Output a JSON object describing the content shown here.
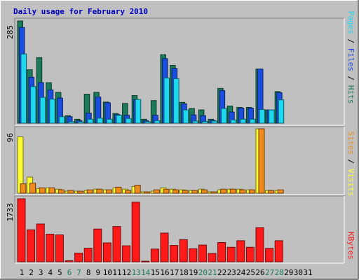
{
  "title": "Daily usage for February 2010",
  "colors": {
    "background": "#c0c0c0",
    "frame_light": "#ffffff",
    "frame_dark": "#808080",
    "title": "#0000c0",
    "hits": "#1a7a5a",
    "files": "#1a4ee0",
    "pages": "#1ed8f0",
    "sites": "#ffff30",
    "visits": "#f08a1a",
    "kbytes": "#ff1a1a",
    "weekday_label": "#000000",
    "weekend_label": "#1a7a5a"
  },
  "chart_data": [
    {
      "type": "bar",
      "panel": "hits-files-pages",
      "max_label": "285",
      "ylim": [
        0,
        285
      ],
      "legend": [
        "Pages",
        "Files",
        "Hits"
      ],
      "categories": [
        "1",
        "2",
        "3",
        "4",
        "5",
        "6",
        "7",
        "8",
        "9",
        "10",
        "11",
        "12",
        "13",
        "14",
        "15",
        "16",
        "17",
        "18",
        "19",
        "20",
        "21",
        "22",
        "23",
        "24",
        "25",
        "26",
        "27",
        "28",
        "29",
        "30",
        "31"
      ],
      "series": [
        {
          "name": "Hits",
          "values": [
            285,
            149,
            183,
            113,
            86,
            21,
            11,
            81,
            86,
            59,
            27,
            55,
            77,
            11,
            63,
            191,
            161,
            58,
            41,
            37,
            11,
            97,
            48,
            44,
            44,
            151,
            37,
            88,
            0,
            0,
            0
          ]
        },
        {
          "name": "Files",
          "values": [
            267,
            128,
            113,
            93,
            70,
            18,
            7,
            28,
            73,
            57,
            24,
            22,
            66,
            7,
            22,
            180,
            153,
            54,
            23,
            21,
            8,
            91,
            31,
            42,
            42,
            151,
            37,
            85,
            0,
            0,
            0
          ]
        },
        {
          "name": "Pages",
          "values": [
            193,
            102,
            72,
            67,
            18,
            4,
            4,
            11,
            14,
            11,
            22,
            13,
            66,
            4,
            7,
            126,
            124,
            37,
            6,
            5,
            6,
            41,
            9,
            11,
            11,
            38,
            37,
            65,
            0,
            0,
            0
          ]
        }
      ]
    },
    {
      "type": "bar",
      "panel": "sites-visits",
      "max_label": "96",
      "ylim": [
        0,
        96
      ],
      "legend": [
        "Sites",
        "Visits"
      ],
      "categories": [
        "1",
        "2",
        "3",
        "4",
        "5",
        "6",
        "7",
        "8",
        "9",
        "10",
        "11",
        "12",
        "13",
        "14",
        "15",
        "16",
        "17",
        "18",
        "19",
        "20",
        "21",
        "22",
        "23",
        "24",
        "25",
        "26",
        "27",
        "28",
        "29",
        "30",
        "31"
      ],
      "series": [
        {
          "name": "Sites",
          "values": [
            84,
            24,
            7,
            8,
            6,
            3,
            3,
            4,
            6,
            5,
            8,
            6,
            10,
            2,
            3,
            8,
            6,
            5,
            4,
            6,
            2,
            5,
            6,
            6,
            5,
            96,
            4,
            4,
            0,
            0,
            0
          ]
        },
        {
          "name": "Visits",
          "values": [
            14,
            15,
            8,
            8,
            5,
            4,
            3,
            5,
            6,
            5,
            9,
            4,
            12,
            2,
            5,
            6,
            5,
            4,
            4,
            5,
            2,
            6,
            6,
            5,
            5,
            96,
            4,
            5,
            0,
            0,
            0
          ]
        }
      ]
    },
    {
      "type": "bar",
      "panel": "kbytes",
      "max_label": "1733",
      "ylim": [
        0,
        1733
      ],
      "legend": [
        "KBytes"
      ],
      "categories": [
        "1",
        "2",
        "3",
        "4",
        "5",
        "6",
        "7",
        "8",
        "9",
        "10",
        "11",
        "12",
        "13",
        "14",
        "15",
        "16",
        "17",
        "18",
        "19",
        "20",
        "21",
        "22",
        "23",
        "24",
        "25",
        "26",
        "27",
        "28",
        "29",
        "30",
        "31"
      ],
      "series": [
        {
          "name": "KBytes",
          "values": [
            1733,
            880,
            1040,
            760,
            740,
            31,
            240,
            374,
            900,
            520,
            970,
            440,
            1640,
            16,
            350,
            790,
            450,
            610,
            360,
            460,
            230,
            530,
            400,
            580,
            400,
            940,
            370,
            580,
            0,
            0,
            0
          ]
        }
      ]
    }
  ],
  "x_labels": [
    {
      "label": "1",
      "weekend": false
    },
    {
      "label": "2",
      "weekend": false
    },
    {
      "label": "3",
      "weekend": false
    },
    {
      "label": "4",
      "weekend": false
    },
    {
      "label": "5",
      "weekend": false
    },
    {
      "label": "6",
      "weekend": true
    },
    {
      "label": "7",
      "weekend": true
    },
    {
      "label": "8",
      "weekend": false
    },
    {
      "label": "9",
      "weekend": false
    },
    {
      "label": "10",
      "weekend": false
    },
    {
      "label": "11",
      "weekend": false
    },
    {
      "label": "12",
      "weekend": false
    },
    {
      "label": "13",
      "weekend": true
    },
    {
      "label": "14",
      "weekend": true
    },
    {
      "label": "15",
      "weekend": false
    },
    {
      "label": "16",
      "weekend": false
    },
    {
      "label": "17",
      "weekend": false
    },
    {
      "label": "18",
      "weekend": false
    },
    {
      "label": "19",
      "weekend": false
    },
    {
      "label": "20",
      "weekend": true
    },
    {
      "label": "21",
      "weekend": true
    },
    {
      "label": "22",
      "weekend": false
    },
    {
      "label": "23",
      "weekend": false
    },
    {
      "label": "24",
      "weekend": false
    },
    {
      "label": "25",
      "weekend": false
    },
    {
      "label": "26",
      "weekend": false
    },
    {
      "label": "27",
      "weekend": true
    },
    {
      "label": "28",
      "weekend": true
    },
    {
      "label": "29",
      "weekend": false
    },
    {
      "label": "30",
      "weekend": false
    },
    {
      "label": "31",
      "weekend": false
    }
  ],
  "legend_separator": " / ",
  "legend_kbytes": "KBytes"
}
